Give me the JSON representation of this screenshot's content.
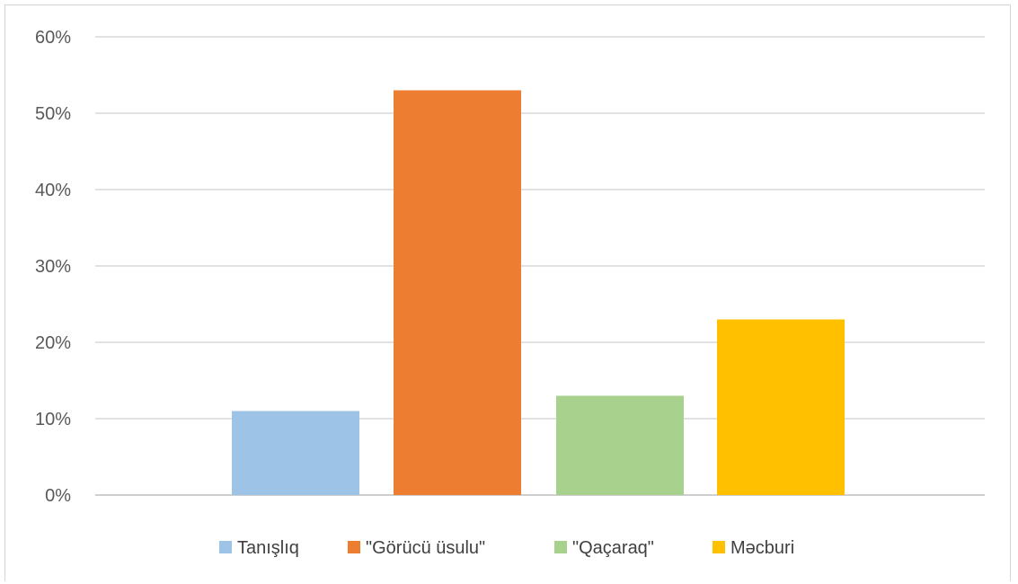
{
  "chart_data": {
    "type": "bar",
    "categories": [
      "Tanışlıq",
      "\"Görücü üsulu\"",
      "\"Qaçaraq\"",
      "Məcburi"
    ],
    "values": [
      11,
      53,
      13,
      23
    ],
    "colors": [
      "#9dc3e6",
      "#ed7d31",
      "#a9d18e",
      "#ffc000"
    ],
    "ylim": [
      0,
      60
    ],
    "yticks": [
      0,
      10,
      20,
      30,
      40,
      50,
      60
    ],
    "ytick_format": "%",
    "title": "",
    "xlabel": "",
    "ylabel": "",
    "grid": true,
    "legend_position": "bottom"
  }
}
